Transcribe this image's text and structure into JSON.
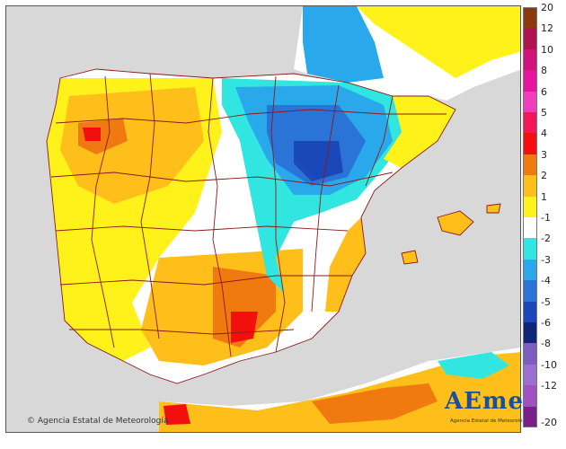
{
  "credit": "© Agencia Estatal de Meteorología",
  "logo": {
    "wordmark": "AEmet",
    "subtitle": "Agencia Estatal de Meteorología"
  },
  "legend": {
    "labels": [
      "20",
      "12",
      "10",
      "8",
      "6",
      "5",
      "4",
      "3",
      "2",
      "1",
      "-1",
      "-2",
      "-3",
      "-4",
      "-5",
      "-6",
      "-8",
      "-10",
      "-12",
      "-20"
    ],
    "colors": [
      "#8a3a0e",
      "#b0134f",
      "#d0127a",
      "#e6149e",
      "#f03dbb",
      "#f4165a",
      "#f40f0f",
      "#f07a10",
      "#ffbf1a",
      "#fff21a",
      "#ffffff",
      "#31e6e0",
      "#2aa8ec",
      "#2a74d8",
      "#1b48b8",
      "#10247a",
      "#7c5ec0",
      "#9a6fd0",
      "#a050c0",
      "#7a208c"
    ]
  },
  "map": {
    "sea_color": "#d8d8d8",
    "border_color": "#8b1a1a"
  }
}
